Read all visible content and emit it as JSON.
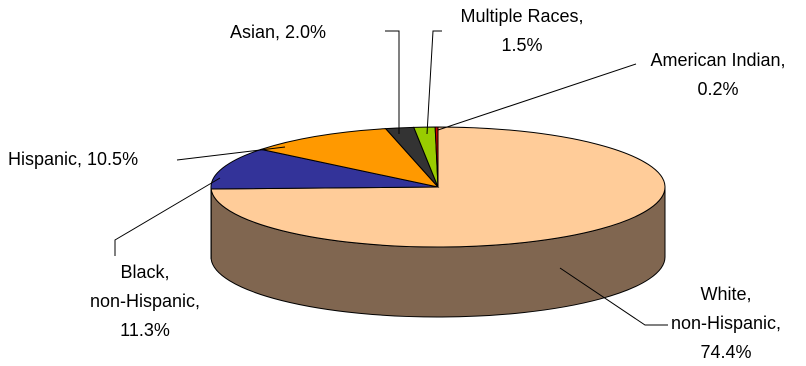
{
  "chart_data": {
    "type": "pie",
    "style": "3d",
    "title": "",
    "slices": [
      {
        "label_lines": [
          "White,",
          "non-Hispanic,",
          "74.4%"
        ],
        "category": "White, non-Hispanic",
        "value": 74.4,
        "color": "#FFCC99",
        "side_color": "#806650"
      },
      {
        "label_lines": [
          "Black,",
          "non-Hispanic,",
          "11.3%"
        ],
        "category": "Black, non-Hispanic",
        "value": 11.3,
        "color": "#333399",
        "side_color": "#1A1A4D"
      },
      {
        "label_lines": [
          "Hispanic, 10.5%"
        ],
        "category": "Hispanic",
        "value": 10.5,
        "color": "#FF9900",
        "side_color": "#804D00"
      },
      {
        "label_lines": [
          "Asian, 2.0%"
        ],
        "category": "Asian",
        "value": 2.0,
        "color": "#333333",
        "side_color": "#1A1A1A"
      },
      {
        "label_lines": [
          "Multiple Races,",
          "1.5%"
        ],
        "category": "Multiple Races",
        "value": 1.5,
        "color": "#99CC00",
        "side_color": "#4D6600"
      },
      {
        "label_lines": [
          "American Indian,",
          "0.2%"
        ],
        "category": "American Indian",
        "value": 0.2,
        "color": "#CC0000",
        "side_color": "#660000"
      }
    ]
  }
}
